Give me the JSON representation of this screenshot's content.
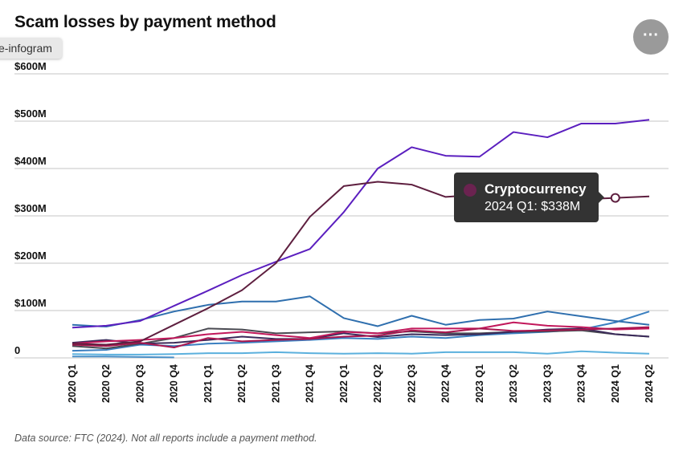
{
  "header": {
    "title": "Scam losses by payment method",
    "chip_label": "e-infogram",
    "menu_label": "···"
  },
  "footer": {
    "source": "Data source: FTC (2024). Not all reports include a payment method."
  },
  "tooltip": {
    "series": "Cryptocurrency",
    "value_text": "2024 Q1: $338M",
    "color": "#6b2350"
  },
  "chart_data": {
    "type": "line",
    "title": "Scam losses by payment method",
    "ylim": [
      0,
      600
    ],
    "yticks": [
      0,
      100,
      200,
      300,
      400,
      500,
      600
    ],
    "ytick_labels": [
      "0",
      "$100M",
      "$200M",
      "$300M",
      "$400M",
      "$500M",
      "$600M"
    ],
    "grid": true,
    "categories": [
      "2020 Q1",
      "2020 Q2",
      "2020 Q3",
      "2020 Q4",
      "2021 Q1",
      "2021 Q2",
      "2021 Q3",
      "2021 Q4",
      "2022 Q1",
      "2022 Q2",
      "2022 Q3",
      "2022 Q4",
      "2023 Q1",
      "2023 Q2",
      "2023 Q3",
      "2023 Q4",
      "2024 Q1",
      "2024 Q2"
    ],
    "series": [
      {
        "color": "#4a90c8",
        "values": [
          3,
          3,
          2,
          1,
          null,
          null,
          null,
          null,
          null,
          null,
          null,
          null,
          null,
          null,
          null,
          null,
          null,
          null
        ]
      },
      {
        "color": "#5bb0dd",
        "values": [
          8,
          7,
          7,
          8,
          10,
          10,
          12,
          10,
          9,
          10,
          9,
          12,
          12,
          12,
          9,
          14,
          11,
          9
        ]
      },
      {
        "color": "#3a7fc0",
        "values": [
          15,
          17,
          28,
          25,
          30,
          32,
          35,
          38,
          42,
          40,
          45,
          42,
          48,
          52,
          55,
          60,
          75,
          98
        ]
      },
      {
        "color": "#4a4a52",
        "values": [
          25,
          20,
          30,
          42,
          62,
          60,
          52,
          54,
          56,
          52,
          56,
          52,
          52,
          55,
          56,
          58,
          50,
          45
        ]
      },
      {
        "color": "#3b2b5a",
        "values": [
          32,
          38,
          30,
          32,
          38,
          45,
          40,
          40,
          52,
          44,
          50,
          48,
          50,
          55,
          60,
          62,
          50,
          45
        ]
      },
      {
        "color": "#c2185b",
        "values": [
          30,
          35,
          38,
          42,
          50,
          55,
          48,
          42,
          55,
          52,
          62,
          62,
          62,
          75,
          68,
          65,
          60,
          62
        ]
      },
      {
        "color": "#a8164f",
        "values": [
          28,
          25,
          32,
          22,
          42,
          35,
          38,
          40,
          45,
          47,
          58,
          54,
          62,
          57,
          58,
          60,
          62,
          65
        ]
      },
      {
        "color": "#2f6fae",
        "values": [
          70,
          66,
          80,
          98,
          112,
          119,
          119,
          130,
          84,
          67,
          89,
          70,
          80,
          83,
          98,
          88,
          78,
          70
        ]
      },
      {
        "color": "#5b1fbf",
        "values": [
          64,
          68,
          78,
          110,
          142,
          175,
          203,
          230,
          308,
          400,
          445,
          427,
          425,
          477,
          466,
          495,
          495,
          503
        ]
      },
      {
        "name": "Cryptocurrency",
        "color": "#5e1f3f",
        "values": [
          30,
          28,
          35,
          70,
          105,
          143,
          200,
          298,
          363,
          372,
          366,
          340,
          345,
          338,
          335,
          335,
          338,
          341
        ],
        "highlight_index": 16
      }
    ]
  }
}
